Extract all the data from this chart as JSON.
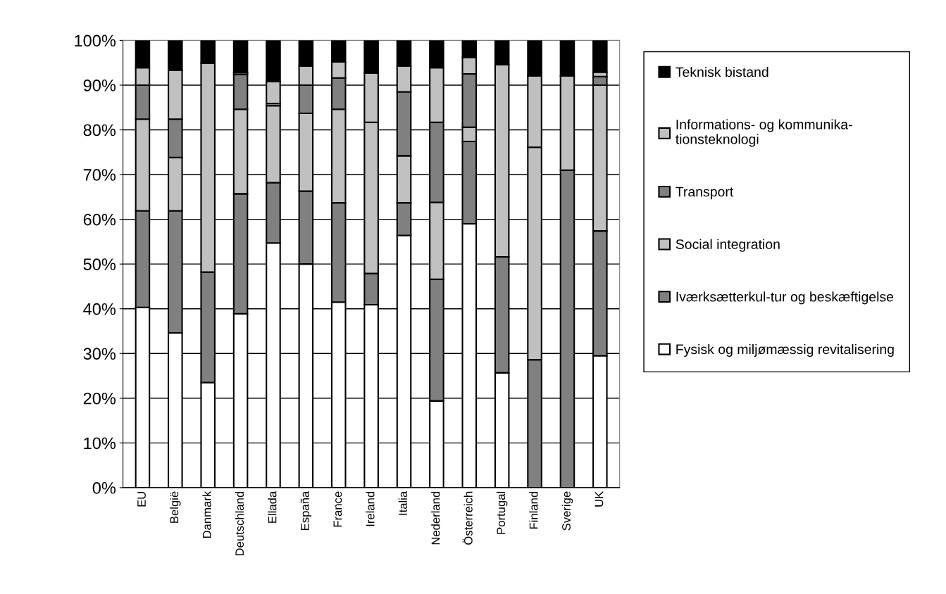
{
  "chart_data": {
    "type": "bar",
    "stacked": true,
    "grid": "y",
    "legend": "right",
    "categories": [
      "EU",
      "België",
      "Danmark",
      "Deutschland",
      "Ellada",
      "España",
      "France",
      "Ireland",
      "Italia",
      "Nederland",
      "Österreich",
      "Portugal",
      "Finland",
      "Sverige",
      "UK"
    ],
    "ylim": [
      0,
      100
    ],
    "yticks": [
      {
        "value": 0,
        "label": "0%"
      },
      {
        "value": 10,
        "label": "10%"
      },
      {
        "value": 20,
        "label": "20%"
      },
      {
        "value": 30,
        "label": "30%"
      },
      {
        "value": 40,
        "label": "40%"
      },
      {
        "value": 50,
        "label": "50%"
      },
      {
        "value": 60,
        "label": "60%"
      },
      {
        "value": 70,
        "label": "70%"
      },
      {
        "value": 80,
        "label": "80%"
      },
      {
        "value": 90,
        "label": "90%"
      },
      {
        "value": 100,
        "label": "100%"
      }
    ],
    "series": [
      {
        "name": "Fysisk og miljømæssig revitalisering",
        "color": "#ffffff",
        "values": [
          40.3,
          34.6,
          23.5,
          38.9,
          54.7,
          50,
          41.5,
          40.9,
          56.4,
          19.4,
          59.0,
          25.7,
          null,
          null,
          29.5
        ]
      },
      {
        "name": "Iværksætterkul-tur og beskæftigelse",
        "color": "#808080",
        "values": [
          21.6,
          27.3,
          24.7,
          26.8,
          13.5,
          16.3,
          22.2,
          7.0,
          7.3,
          27.2,
          18.4,
          25.9,
          28.6,
          71.0,
          27.9
        ]
      },
      {
        "name": "Social integration",
        "color": "#c0c0c0",
        "values": [
          20.5,
          11.9,
          46.7,
          18.9,
          17.2,
          17.4,
          20.9,
          33.8,
          10.5,
          17.2,
          3.2,
          43.0,
          47.5,
          21.1,
          32.6
        ]
      },
      {
        "name": "Transport",
        "color": "#808080",
        "values": [
          7.6,
          8.6,
          null,
          7.8,
          0.5,
          6.3,
          7.0,
          null,
          14.3,
          17.9,
          11.9,
          null,
          null,
          null,
          1.9
        ]
      },
      {
        "name": "Informations- og kommunika-\ntionsteknologi",
        "color": "#c0c0c0",
        "values": [
          3.9,
          10.9,
          null,
          0.4,
          4.9,
          4.3,
          3.6,
          11.0,
          5.8,
          12.2,
          3.7,
          null,
          16.0,
          null,
          1.0
        ]
      },
      {
        "name": "Teknisk bistand",
        "color": "#000000",
        "values": [
          6.1,
          6.7,
          5.1,
          7.2,
          9.2,
          5.7,
          4.8,
          7.3,
          5.7,
          6.1,
          3.8,
          5.4,
          7.9,
          7.9,
          7.1
        ]
      }
    ]
  }
}
